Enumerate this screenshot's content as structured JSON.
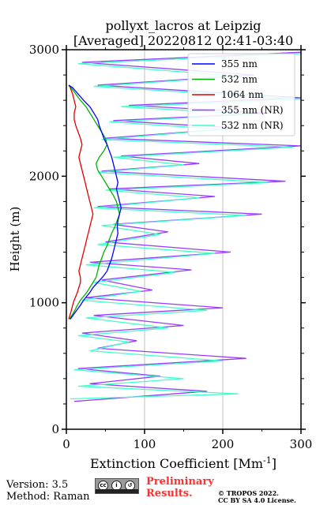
{
  "chart_data": {
    "type": "line",
    "title_line1": "pollyxt_lacros at Leipzig",
    "title_line2": "[Averaged] 20220812 02:41-03:40",
    "xlabel": "Extinction Coefficient [Mm^-1]",
    "ylabel": "Height (m)",
    "xlim": [
      0,
      300
    ],
    "ylim": [
      0,
      3000
    ],
    "xticks": [
      0,
      100,
      200,
      300
    ],
    "yticks": [
      0,
      1000,
      2000,
      3000
    ],
    "grid": "vertical",
    "legend": "top-right",
    "series": [
      {
        "name": "355 nm",
        "color": "#0000ff",
        "x": [
          5,
          12,
          18,
          22,
          26,
          30,
          34,
          40,
          46,
          52,
          55,
          58,
          60,
          62,
          64,
          66,
          65,
          66,
          68,
          70,
          68,
          66,
          64,
          66,
          64,
          62,
          60,
          58,
          55,
          52,
          48,
          45,
          42,
          40,
          35,
          30,
          22,
          15,
          8,
          3
        ],
        "y": [
          870,
          930,
          980,
          1020,
          1050,
          1080,
          1120,
          1160,
          1200,
          1250,
          1300,
          1350,
          1400,
          1450,
          1500,
          1550,
          1600,
          1650,
          1700,
          1750,
          1800,
          1850,
          1900,
          1950,
          2000,
          2050,
          2100,
          2150,
          2200,
          2250,
          2300,
          2350,
          2400,
          2450,
          2500,
          2550,
          2600,
          2650,
          2700,
          2720
        ]
      },
      {
        "name": "532 nm",
        "color": "#00b000",
        "x": [
          4,
          10,
          14,
          18,
          22,
          26,
          30,
          34,
          38,
          40,
          42,
          45,
          48,
          52,
          55,
          58,
          62,
          65,
          68,
          66,
          64,
          60,
          55,
          50,
          45,
          40,
          38,
          42,
          48,
          52,
          50,
          45,
          40,
          35,
          30,
          25,
          18,
          12,
          6,
          3
        ],
        "y": [
          870,
          930,
          980,
          1020,
          1050,
          1080,
          1120,
          1160,
          1200,
          1250,
          1300,
          1350,
          1400,
          1450,
          1500,
          1550,
          1600,
          1650,
          1700,
          1750,
          1800,
          1850,
          1900,
          1950,
          2000,
          2050,
          2100,
          2150,
          2200,
          2250,
          2300,
          2350,
          2400,
          2450,
          2500,
          2550,
          2600,
          2650,
          2700,
          2720
        ]
      },
      {
        "name": "1064 nm",
        "color": "#e00000",
        "x": [
          3,
          6,
          8,
          10,
          12,
          14,
          16,
          18,
          18,
          16,
          18,
          20,
          22,
          24,
          26,
          28,
          30,
          32,
          34,
          32,
          30,
          28,
          26,
          24,
          22,
          20,
          18,
          16,
          18,
          20,
          18,
          15,
          12,
          10,
          10,
          12,
          10,
          8,
          5,
          3
        ],
        "y": [
          870,
          930,
          980,
          1020,
          1050,
          1080,
          1120,
          1160,
          1200,
          1250,
          1300,
          1350,
          1400,
          1450,
          1500,
          1550,
          1600,
          1650,
          1700,
          1750,
          1800,
          1850,
          1900,
          1950,
          2000,
          2050,
          2100,
          2150,
          2200,
          2250,
          2300,
          2350,
          2400,
          2450,
          2500,
          2550,
          2600,
          2650,
          2700,
          2720
        ]
      },
      {
        "name": "355 nm (NR)",
        "color": "#9a3cff",
        "x": [
          10,
          180,
          30,
          120,
          15,
          230,
          40,
          90,
          20,
          150,
          35,
          200,
          25,
          110,
          45,
          160,
          30,
          210,
          50,
          130,
          60,
          250,
          40,
          190,
          55,
          280,
          45,
          170,
          70,
          300,
          50,
          220,
          60,
          260,
          80,
          300,
          40,
          240,
          20,
          300
        ],
        "y": [
          220,
          300,
          360,
          420,
          480,
          560,
          640,
          700,
          760,
          820,
          900,
          960,
          1040,
          1100,
          1180,
          1260,
          1320,
          1400,
          1480,
          1560,
          1620,
          1700,
          1760,
          1840,
          1900,
          1960,
          2040,
          2100,
          2160,
          2240,
          2300,
          2380,
          2440,
          2500,
          2560,
          2620,
          2720,
          2800,
          2900,
          2980
        ]
      },
      {
        "name": "532 nm (NR)",
        "color": "#40ffc8",
        "x": [
          5,
          220,
          15,
          150,
          10,
          200,
          30,
          80,
          15,
          130,
          25,
          180,
          20,
          95,
          35,
          140,
          25,
          190,
          40,
          120,
          45,
          230,
          35,
          170,
          50,
          260,
          40,
          150,
          60,
          290,
          45,
          200,
          55,
          240,
          70,
          300,
          35,
          220,
          15,
          300
        ],
        "y": [
          240,
          280,
          340,
          400,
          470,
          540,
          620,
          690,
          740,
          800,
          880,
          940,
          1020,
          1090,
          1160,
          1240,
          1300,
          1390,
          1460,
          1540,
          1610,
          1690,
          1750,
          1830,
          1890,
          1950,
          2030,
          2090,
          2150,
          2230,
          2290,
          2370,
          2430,
          2490,
          2550,
          2610,
          2710,
          2790,
          2890,
          2970
        ]
      }
    ]
  },
  "footer": {
    "version": "Version: 3.5",
    "method": "Method: Raman",
    "cc_icons": [
      "cc-icon",
      "by-icon",
      "sa-icon"
    ],
    "preliminary_line1": "Preliminary",
    "preliminary_line2": "Results.",
    "copyright_line1": "© TROPOS 2022.",
    "copyright_line2": "CC BY SA 4.0 License."
  }
}
